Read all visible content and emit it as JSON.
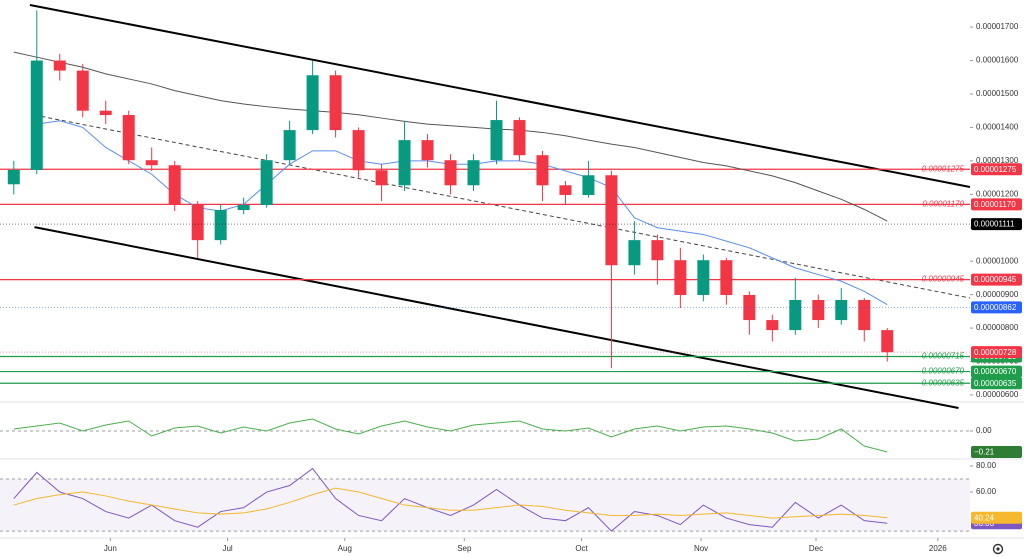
{
  "chart_data": [
    {
      "type": "candlestick",
      "x": [
        0,
        1,
        2,
        3,
        4,
        5,
        6,
        7,
        8,
        9,
        10,
        11,
        12,
        13,
        14,
        15,
        16,
        17,
        18,
        19,
        20,
        21,
        22,
        23,
        24,
        25,
        26,
        27,
        28,
        29,
        30,
        31,
        32,
        33,
        34,
        35,
        36,
        37,
        38
      ],
      "open": [
        1.23e-05,
        1.273e-05,
        1.6e-05,
        1.57e-05,
        1.45e-05,
        1.437e-05,
        1.302e-05,
        1.287e-05,
        1.168e-05,
        1.063e-05,
        1.153e-05,
        1.168e-05,
        1.302e-05,
        1.392e-05,
        1.556e-05,
        1.392e-05,
        1.272e-05,
        1.227e-05,
        1.362e-05,
        1.302e-05,
        1.227e-05,
        1.302e-05,
        1.422e-05,
        1.317e-05,
        1.227e-05,
        1.198e-05,
        1.257e-05,
        9.88e-06,
        1.063e-05,
        1.003e-05,
        8.99e-06,
        1.003e-05,
        8.99e-06,
        8.24e-06,
        7.94e-06,
        8.84e-06,
        8.24e-06,
        8.84e-06,
        7.94e-06
      ],
      "high": [
        1.3e-05,
        1.75e-05,
        1.62e-05,
        1.59e-05,
        1.48e-05,
        1.45e-05,
        1.34e-05,
        1.3e-05,
        1.18e-05,
        1.17e-05,
        1.19e-05,
        1.32e-05,
        1.42e-05,
        1.6e-05,
        1.57e-05,
        1.4e-05,
        1.29e-05,
        1.42e-05,
        1.38e-05,
        1.32e-05,
        1.32e-05,
        1.48e-05,
        1.43e-05,
        1.33e-05,
        1.24e-05,
        1.3e-05,
        1.27e-05,
        1.12e-05,
        1.08e-05,
        1.04e-05,
        1.02e-05,
        1.01e-05,
        9.1e-06,
        8.4e-06,
        9.5e-06,
        9e-06,
        9.2e-06,
        8.9e-06,
        8e-06
      ],
      "low": [
        1.2e-05,
        1.26e-05,
        1.54e-05,
        1.43e-05,
        1.41e-05,
        1.29e-05,
        1.27e-05,
        1.15e-05,
        1.01e-05,
        1.05e-05,
        1.14e-05,
        1.16e-05,
        1.29e-05,
        1.38e-05,
        1.37e-05,
        1.25e-05,
        1.18e-05,
        1.21e-05,
        1.28e-05,
        1.2e-05,
        1.21e-05,
        1.29e-05,
        1.3e-05,
        1.18e-05,
        1.17e-05,
        1.19e-05,
        6.8e-06,
        9.6e-06,
        9.3e-06,
        8.6e-06,
        8.8e-06,
        8.7e-06,
        7.8e-06,
        7.6e-06,
        7.8e-06,
        8e-06,
        8.1e-06,
        7.6e-06,
        7e-06
      ],
      "close": [
        1.273e-05,
        1.6e-05,
        1.57e-05,
        1.45e-05,
        1.437e-05,
        1.302e-05,
        1.287e-05,
        1.168e-05,
        1.063e-05,
        1.153e-05,
        1.168e-05,
        1.302e-05,
        1.392e-05,
        1.556e-05,
        1.392e-05,
        1.272e-05,
        1.227e-05,
        1.362e-05,
        1.302e-05,
        1.227e-05,
        1.302e-05,
        1.422e-05,
        1.317e-05,
        1.227e-05,
        1.198e-05,
        1.257e-05,
        9.88e-06,
        1.063e-05,
        1.003e-05,
        8.99e-06,
        1.003e-05,
        8.99e-06,
        8.24e-06,
        7.94e-06,
        8.84e-06,
        8.24e-06,
        8.84e-06,
        7.94e-06,
        7.28e-06
      ],
      "color_up": "#089981",
      "color_down": "#f23645",
      "series": [
        {
          "color": "#5b8def",
          "values": [
            null,
            1.41e-05,
            1.42e-05,
            1.4e-05,
            1.34e-05,
            1.3e-05,
            1.26e-05,
            1.2e-05,
            1.16e-05,
            1.15e-05,
            1.17e-05,
            1.23e-05,
            1.29e-05,
            1.33e-05,
            1.33e-05,
            1.3e-05,
            1.29e-05,
            1.3e-05,
            1.3e-05,
            1.29e-05,
            1.29e-05,
            1.3e-05,
            1.3e-05,
            1.29e-05,
            1.27e-05,
            1.25e-05,
            1.22e-05,
            1.13e-05,
            1.1e-05,
            1.09e-05,
            1.08e-05,
            1.06e-05,
            1.04e-05,
            1.01e-05,
            9.8e-06,
            9.6e-06,
            9.4e-06,
            9.1e-06,
            8.7e-06
          ]
        },
        {
          "color": "#555555",
          "values": [
            1.625e-05,
            1.61e-05,
            1.595e-05,
            1.58e-05,
            1.56e-05,
            1.545e-05,
            1.53e-05,
            1.51e-05,
            1.495e-05,
            1.48e-05,
            1.47e-05,
            1.462e-05,
            1.455e-05,
            1.45e-05,
            1.445e-05,
            1.438e-05,
            1.428e-05,
            1.418e-05,
            1.41e-05,
            1.405e-05,
            1.4e-05,
            1.395e-05,
            1.392e-05,
            1.385e-05,
            1.375e-05,
            1.362e-05,
            1.35e-05,
            1.34e-05,
            1.325e-05,
            1.31e-05,
            1.295e-05,
            1.285e-05,
            1.27e-05,
            1.255e-05,
            1.235e-05,
            1.21e-05,
            1.185e-05,
            1.155e-05,
            1.12e-05
          ]
        }
      ],
      "trendlines": [
        {
          "x": [
            0.7,
            41.6
          ],
          "y": [
            1.766e-05,
            1.222e-05
          ],
          "color": "#000000",
          "dashed": false
        },
        {
          "x": [
            0.9,
            41.1
          ],
          "y": [
            1.102e-05,
            5.61e-06
          ],
          "color": "#000000",
          "dashed": false
        },
        {
          "x": [
            0.9,
            41.6
          ],
          "y": [
            1.437e-05,
            8.9e-06
          ],
          "color": "#444444",
          "dashed": true
        }
      ],
      "levels": [
        {
          "value": 1.275e-05,
          "label": "0.00001275",
          "color": "#f23645"
        },
        {
          "value": 1.17e-05,
          "label": "0.00001170",
          "color": "#f23645"
        },
        {
          "value": 9.45e-06,
          "label": "0.00000945",
          "color": "#f23645"
        },
        {
          "value": 7.15e-06,
          "label": "0.00000715",
          "color": "#1f9d4a"
        },
        {
          "value": 6.7e-06,
          "label": "0.00000670",
          "color": "#1f9d4a"
        },
        {
          "value": 6.35e-06,
          "label": "0.00000635",
          "color": "#1f9d4a"
        }
      ],
      "price_labels": [
        {
          "value": 1.111e-05,
          "label": "0.00001111",
          "color": "#000000"
        },
        {
          "value": 8.62e-06,
          "label": "0.00000862",
          "color": "#2962ff"
        },
        {
          "value": 7.28e-06,
          "label": "0.00000728",
          "color": "#f23645"
        }
      ],
      "xlim": [
        -0.6,
        41.6
      ],
      "ylim": [
        5.85e-06,
        1.781e-05
      ],
      "yticks": [
        {
          "value": 6e-06,
          "label": "0.00000600"
        },
        {
          "value": 7e-06,
          "label": "0.00000700"
        },
        {
          "value": 8e-06,
          "label": "0.00000800"
        },
        {
          "value": 9e-06,
          "label": "0.00000900"
        },
        {
          "value": 1e-05,
          "label": "0.00001000"
        },
        {
          "value": 1.1e-05,
          "label": "0.00001100"
        },
        {
          "value": 1.2e-05,
          "label": "0.00001200"
        },
        {
          "value": 1.3e-05,
          "label": "0.00001300"
        },
        {
          "value": 1.4e-05,
          "label": "0.00001400"
        },
        {
          "value": 1.5e-05,
          "label": "0.00001500"
        },
        {
          "value": 1.6e-05,
          "label": "0.00001600"
        },
        {
          "value": 1.7e-05,
          "label": "0.00001700"
        }
      ],
      "xticks": [
        {
          "value": 4.2,
          "label": "Jun"
        },
        {
          "value": 9.3,
          "label": "Jul"
        },
        {
          "value": 14.4,
          "label": "Aug"
        },
        {
          "value": 19.6,
          "label": "Sep"
        },
        {
          "value": 24.7,
          "label": "Oct"
        },
        {
          "value": 29.9,
          "label": "Nov"
        },
        {
          "value": 34.9,
          "label": "Dec"
        },
        {
          "value": 40.2,
          "label": "2026"
        }
      ],
      "grid": false
    },
    {
      "type": "line",
      "x": [
        0,
        1,
        2,
        3,
        4,
        5,
        6,
        7,
        8,
        9,
        10,
        11,
        12,
        13,
        14,
        15,
        16,
        17,
        18,
        19,
        20,
        21,
        22,
        23,
        24,
        25,
        26,
        27,
        28,
        29,
        30,
        31,
        32,
        33,
        34,
        35,
        36,
        37,
        38
      ],
      "series": [
        {
          "color": "#4caf50",
          "values": [
            0.02,
            0.05,
            0.08,
            0.0,
            0.06,
            0.1,
            -0.05,
            0.03,
            0.05,
            -0.02,
            0.04,
            0.0,
            0.08,
            0.12,
            0.02,
            -0.03,
            0.05,
            0.1,
            0.04,
            0.0,
            0.06,
            0.08,
            0.1,
            0.02,
            0.0,
            0.03,
            -0.06,
            0.02,
            0.05,
            0.0,
            0.04,
            0.05,
            0.02,
            -0.02,
            -0.1,
            -0.08,
            0.02,
            -0.15,
            -0.21
          ]
        }
      ],
      "price_labels": [
        {
          "value": -0.21,
          "label": "−0.21",
          "color": "#2e7d32"
        }
      ],
      "xlim": [
        -0.6,
        41.6
      ],
      "ylim": [
        -0.27,
        0.26
      ],
      "yticks": [
        {
          "value": 0,
          "label": "0.00"
        }
      ],
      "grid": true
    },
    {
      "type": "line",
      "x": [
        0,
        1,
        2,
        3,
        4,
        5,
        6,
        7,
        8,
        9,
        10,
        11,
        12,
        13,
        14,
        15,
        16,
        17,
        18,
        19,
        20,
        21,
        22,
        23,
        24,
        25,
        26,
        27,
        28,
        29,
        30,
        31,
        32,
        33,
        34,
        35,
        36,
        37,
        38
      ],
      "series": [
        {
          "color": "#7e57c2",
          "last_value_label": true,
          "values": [
            55,
            75,
            60,
            55,
            45,
            40,
            50,
            38,
            33,
            45,
            48,
            60,
            65,
            78,
            55,
            42,
            38,
            55,
            48,
            42,
            50,
            62,
            50,
            40,
            38,
            48,
            30,
            45,
            42,
            35,
            50,
            40,
            35,
            33,
            52,
            40,
            50,
            38,
            36.03
          ]
        },
        {
          "color": "#f5b82e",
          "last_value_label": true,
          "values": [
            50,
            55,
            58,
            60,
            57,
            53,
            50,
            47,
            44,
            43,
            44,
            47,
            52,
            58,
            63,
            60,
            55,
            50,
            48,
            46,
            46,
            48,
            50,
            49,
            46,
            44,
            42,
            42,
            43,
            42,
            43,
            44,
            42,
            40,
            41,
            42,
            43,
            42,
            40.24
          ]
        }
      ],
      "band": [
        30,
        70
      ],
      "xlim": [
        -0.6,
        41.6
      ],
      "ylim": [
        27,
        84.6
      ],
      "yticks": [
        {
          "value": 60,
          "label": "60.00"
        },
        {
          "value": 80,
          "label": "80.00"
        }
      ],
      "grid": false
    }
  ]
}
